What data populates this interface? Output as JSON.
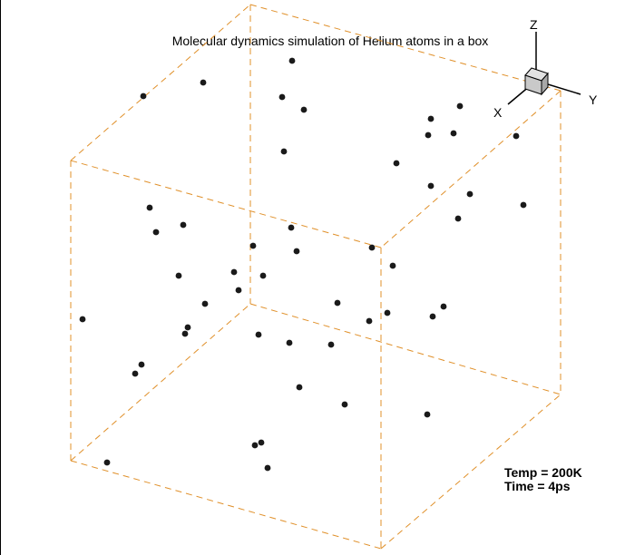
{
  "title": "Molecular dynamics simulation of Helium atoms in a box",
  "triad": {
    "z": "Z",
    "x": "X",
    "y": "Y"
  },
  "stats": {
    "temp_line": "Temp = 200K",
    "time_line": "Time  = 4ps"
  },
  "colors": {
    "box_edge": "#e0902a",
    "atom": "#1a1a1a",
    "cube_face": "#c9c9c9"
  },
  "atom_count": 56
}
